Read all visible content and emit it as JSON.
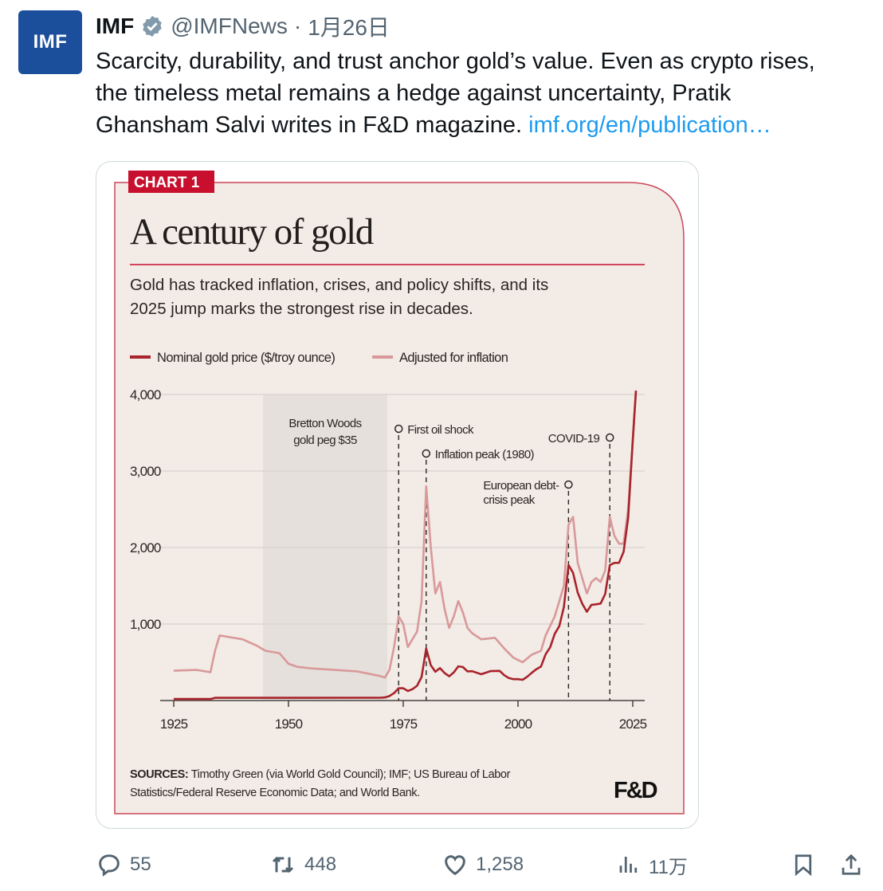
{
  "tweet": {
    "avatar_text": "IMF",
    "display_name": "IMF",
    "handle": "@IMFNews",
    "separator": "·",
    "date": "1月26日",
    "verified": true,
    "body_lines": [
      "Scarcity, durability, and trust anchor gold’s value. Even as crypto rises,",
      "the timeless metal remains a hedge against uncertainty, Pratik",
      "Ghansham Salvi writes in F&D magazine. "
    ],
    "link_text": "imf.org/en/publication…"
  },
  "chart_card": {
    "badge": "CHART 1",
    "title": "A century of gold",
    "subtitle_lines": [
      "Gold has tracked inflation, crises, and policy shifts, and its",
      "2025 jump marks the strongest rise in decades."
    ],
    "sources_label": "SOURCES:",
    "sources_line1": " Timothy Green (via World Gold Council); IMF; US Bureau of Labor",
    "sources_line2": "Statistics/Federal Reserve Economic Data; and World Bank.",
    "logo": "F&D",
    "colors": {
      "accent": "#c8102e",
      "background": "#f2ebe6",
      "shade": "#e5e0dc",
      "nominal": "#a8232b",
      "adjusted": "#d9999a"
    }
  },
  "chart_data": {
    "type": "line",
    "title": "A century of gold",
    "xlim": [
      1925,
      2025
    ],
    "ylim": [
      0,
      4000
    ],
    "x_ticks": [
      "1925",
      "1950",
      "1975",
      "2000",
      "2025"
    ],
    "y_ticks": [
      "1,000",
      "2,000",
      "3,000",
      "4,000"
    ],
    "grid": true,
    "legend_position": "top-left",
    "shaded_region": {
      "from": 1944,
      "to": 1971,
      "label_lines": [
        "Bretton Woods",
        "gold peg $35"
      ]
    },
    "annotations": [
      {
        "x": 1974,
        "label": "First oil shock"
      },
      {
        "x": 1980,
        "label": "Inflation peak (1980)"
      },
      {
        "x": 2011,
        "label_lines": [
          "European debt-",
          "crisis peak"
        ]
      },
      {
        "x": 2020,
        "label": "COVID-19"
      }
    ],
    "series": [
      {
        "name": "Nominal gold price ($/troy ounce)",
        "x": [
          1925,
          1933,
          1934,
          1970,
          1971,
          1972,
          1973,
          1974,
          1975,
          1976,
          1977,
          1978,
          1979,
          1980,
          1981,
          1982,
          1983,
          1984,
          1985,
          1986,
          1987,
          1988,
          1989,
          1990,
          1992,
          1994,
          1996,
          1997,
          1998,
          1999,
          2000,
          2001,
          2002,
          2003,
          2004,
          2005,
          2006,
          2007,
          2008,
          2009,
          2010,
          2011,
          2012,
          2013,
          2014,
          2015,
          2016,
          2017,
          2018,
          2019,
          2020,
          2021,
          2022,
          2023,
          2024,
          2025,
          2025.7
        ],
        "y": [
          20,
          20,
          35,
          36,
          41,
          58,
          97,
          160,
          160,
          125,
          148,
          193,
          307,
          680,
          460,
          376,
          424,
          360,
          317,
          368,
          447,
          437,
          381,
          383,
          344,
          384,
          388,
          331,
          294,
          279,
          279,
          271,
          310,
          363,
          409,
          444,
          603,
          695,
          872,
          972,
          1224,
          1771,
          1669,
          1411,
          1266,
          1160,
          1251,
          1257,
          1268,
          1393,
          1770,
          1799,
          1800,
          1943,
          2386,
          3400,
          4050
        ]
      },
      {
        "name": "Adjusted for inflation",
        "x": [
          1925,
          1930,
          1933,
          1934,
          1935,
          1940,
          1943,
          1945,
          1948,
          1950,
          1952,
          1955,
          1960,
          1965,
          1970,
          1971,
          1972,
          1973,
          1974,
          1975,
          1976,
          1977,
          1978,
          1979,
          1980,
          1981,
          1982,
          1983,
          1984,
          1985,
          1986,
          1987,
          1988,
          1989,
          1990,
          1992,
          1995,
          1997,
          1999,
          2001,
          2003,
          2005,
          2006,
          2008,
          2010,
          2011,
          2012,
          2013,
          2014,
          2015,
          2016,
          2017,
          2018,
          2019,
          2020,
          2021,
          2022,
          2023,
          2024,
          2025,
          2025.7
        ],
        "y": [
          390,
          400,
          370,
          650,
          850,
          800,
          720,
          650,
          620,
          480,
          440,
          420,
          400,
          380,
          320,
          300,
          400,
          700,
          1100,
          1000,
          700,
          800,
          900,
          1300,
          2800,
          2000,
          1400,
          1550,
          1200,
          950,
          1100,
          1300,
          1150,
          950,
          880,
          800,
          820,
          680,
          560,
          500,
          600,
          650,
          850,
          1100,
          1500,
          2300,
          2400,
          1800,
          1600,
          1400,
          1550,
          1600,
          1550,
          1700,
          2400,
          2150,
          2050,
          2050,
          2500,
          3400,
          4050
        ]
      }
    ]
  },
  "actions": {
    "replies": "55",
    "reposts": "448",
    "likes": "1,258",
    "views": "11万"
  }
}
